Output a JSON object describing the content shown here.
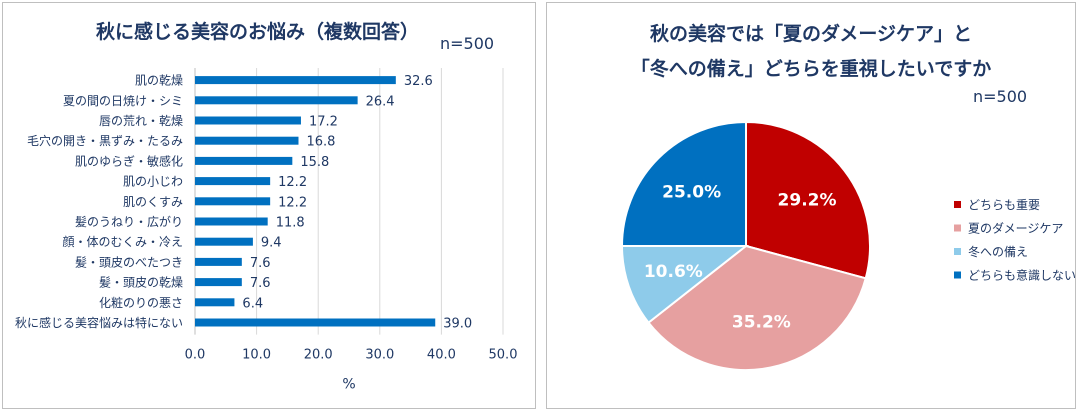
{
  "left": {
    "title": "秋に感じる美容のお悩み（複数回答）",
    "n_label": "n=500",
    "xlabel": "%"
  },
  "right": {
    "title_line1": "秋の美容では「夏のダメージケア」と",
    "title_line2": "「冬への備え」どちらを重視したいですか",
    "n_label": "n=500"
  },
  "chart_data": [
    {
      "type": "bar",
      "orientation": "horizontal",
      "title": "秋に感じる美容のお悩み（複数回答）",
      "xlabel": "%",
      "xlim": [
        0,
        50
      ],
      "xticks": [
        "0.0",
        "10.0",
        "20.0",
        "30.0",
        "40.0",
        "50.0"
      ],
      "grid": true,
      "color": "#0070c0",
      "categories": [
        "肌の乾燥",
        "夏の間の日焼け・シミ",
        "唇の荒れ・乾燥",
        "毛穴の開き・黒ずみ・たるみ",
        "肌のゆらぎ・敏感化",
        "肌の小じわ",
        "肌のくすみ",
        "髪のうねり・広がり",
        "顔・体のむくみ・冷え",
        "髪・頭皮のべたつき",
        "髪・頭皮の乾燥",
        "化粧のりの悪さ",
        "秋に感じる美容悩みは特にない"
      ],
      "values": [
        32.6,
        26.4,
        17.2,
        16.8,
        15.8,
        12.2,
        12.2,
        11.8,
        9.4,
        7.6,
        7.6,
        6.4,
        39.0
      ],
      "value_labels": [
        "32.6",
        "26.4",
        "17.2",
        "16.8",
        "15.8",
        "12.2",
        "12.2",
        "11.8",
        "9.4",
        "7.6",
        "7.6",
        "6.4",
        "39.0"
      ]
    },
    {
      "type": "pie",
      "title": "秋の美容では「夏のダメージケア」と「冬への備え」どちらを重視したいですか",
      "legend_position": "right",
      "slices": [
        {
          "label": "どちらも重要",
          "value": 29.2,
          "value_label": "29.2%",
          "color": "#c00000"
        },
        {
          "label": "夏のダメージケア",
          "value": 35.2,
          "value_label": "35.2%",
          "color": "#e6a0a0"
        },
        {
          "label": "冬への備え",
          "value": 10.6,
          "value_label": "10.6%",
          "color": "#8ecbea"
        },
        {
          "label": "どちらも意識しない",
          "value": 25.0,
          "value_label": "25.0%",
          "color": "#0070c0"
        }
      ]
    }
  ]
}
